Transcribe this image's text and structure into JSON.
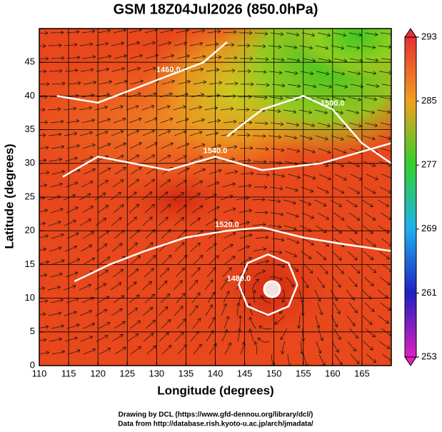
{
  "chart_data": {
    "type": "map",
    "title": "GSM 18Z04Jul2026 (850.0hPa)",
    "x_label": "Longitude (degrees)",
    "y_label": "Latitude  (degrees)",
    "xlim": [
      110,
      170
    ],
    "ylim": [
      0,
      50
    ],
    "xticks": [
      110,
      115,
      120,
      125,
      130,
      135,
      140,
      145,
      150,
      155,
      160,
      165
    ],
    "yticks": [
      0,
      5,
      10,
      15,
      20,
      25,
      30,
      35,
      40,
      45
    ],
    "grid": true,
    "contours": [
      {
        "label": "1480.0",
        "x": [
          154,
          152.5,
          149,
          145.5,
          144,
          145.5,
          149,
          152.5,
          154
        ],
        "y": [
          12,
          15.2,
          16.5,
          15.2,
          12,
          8.8,
          7.5,
          8.8,
          12
        ]
      },
      {
        "label": "1520.0",
        "x": [
          116,
          122,
          128,
          135,
          142,
          148,
          155,
          162,
          170
        ],
        "y": [
          12.5,
          15,
          17,
          19,
          20,
          20.5,
          19,
          18,
          17
        ]
      },
      {
        "label": "1540.0",
        "x": [
          114,
          120,
          126,
          132,
          140,
          148,
          158,
          170
        ],
        "y": [
          28,
          31,
          30,
          29,
          31,
          29,
          30,
          33
        ]
      },
      {
        "label": "1460.0",
        "x": [
          113,
          120,
          126,
          132,
          138,
          142
        ],
        "y": [
          40,
          39,
          41,
          43,
          45,
          48
        ]
      },
      {
        "label": "1500.0",
        "x": [
          142,
          148,
          155,
          160,
          165,
          170
        ],
        "y": [
          34,
          38,
          40,
          38,
          33,
          30
        ]
      }
    ],
    "colorbar": {
      "lim": [
        253,
        293
      ],
      "ticks": [
        253,
        261,
        269,
        277,
        285,
        293
      ],
      "colors": [
        "#e020c0",
        "#2020c0",
        "#20b0f0",
        "#30d030",
        "#f0a020",
        "#e83030"
      ]
    },
    "footer": [
      "Drawing by DCL (https://www.gfd-dennou.org/library/dcl/)",
      "Data from http://database.rish.kyoto-u.ac.jp/arch/jmadata/"
    ]
  }
}
